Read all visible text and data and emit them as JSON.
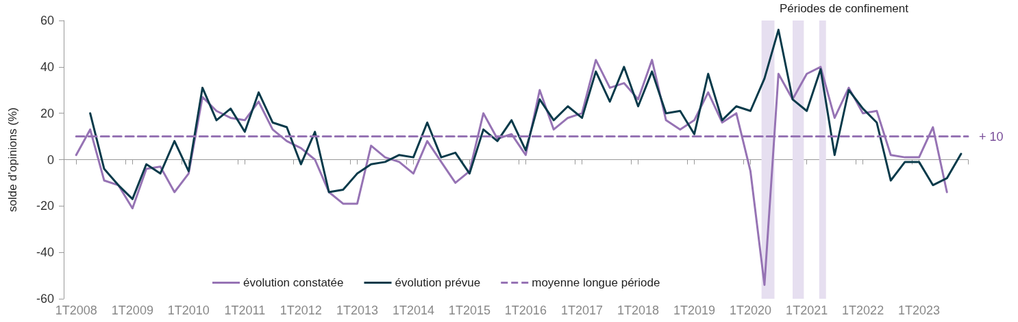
{
  "chart_data": {
    "type": "line",
    "ylabel": "solde d’opinions (%)",
    "x": [
      "2008-01",
      "2008-04",
      "2008-07",
      "2008-10",
      "2009-01",
      "2009-04",
      "2009-07",
      "2009-10",
      "2010-01",
      "2010-04",
      "2010-07",
      "2010-10",
      "2011-01",
      "2011-04",
      "2011-07",
      "2011-10",
      "2012-01",
      "2012-04",
      "2012-07",
      "2012-10",
      "2013-01",
      "2013-04",
      "2013-07",
      "2013-10",
      "2014-01",
      "2014-04",
      "2014-07",
      "2014-10",
      "2015-01",
      "2015-04",
      "2015-07",
      "2015-10",
      "2016-01",
      "2016-04",
      "2016-07",
      "2016-10",
      "2017-01",
      "2017-04",
      "2017-07",
      "2017-10",
      "2018-01",
      "2018-04",
      "2018-07",
      "2018-10",
      "2019-01",
      "2019-04",
      "2019-07",
      "2019-10",
      "2020-01",
      "2020-04",
      "2020-07",
      "2020-10",
      "2021-01",
      "2021-04",
      "2021-07",
      "2021-10",
      "2022-01",
      "2022-04",
      "2022-07",
      "2022-10",
      "2023-01",
      "2023-04",
      "2023-07",
      "2023-10"
    ],
    "series": [
      {
        "name": "évolution constatée",
        "color": "#9673b4",
        "values": [
          2,
          13,
          -9,
          -11,
          -21,
          -4,
          -3,
          -14,
          -6,
          27,
          21,
          18,
          17,
          25,
          13,
          8,
          5,
          0,
          -14,
          -19,
          -19,
          6,
          1,
          -1,
          -6,
          8,
          -1,
          -10,
          -5,
          20,
          9,
          11,
          2,
          30,
          13,
          18,
          20,
          43,
          31,
          33,
          26,
          43,
          17,
          13,
          17,
          29,
          16,
          20,
          -5,
          -54,
          37,
          26,
          37,
          40,
          18,
          31,
          20,
          21,
          2,
          1,
          1,
          14,
          -14,
          null
        ]
      },
      {
        "name": "évolution prévue",
        "color": "#083a4a",
        "values": [
          null,
          20,
          -4,
          -11,
          -17,
          -2,
          -6,
          8,
          -5,
          31,
          17,
          22,
          12,
          29,
          16,
          14,
          -2,
          12,
          -14,
          -13,
          -6,
          -2,
          -1,
          2,
          1,
          16,
          1,
          3,
          -6,
          13,
          8,
          17,
          4,
          26,
          17,
          23,
          18,
          38,
          25,
          40,
          23,
          38,
          20,
          21,
          11,
          37,
          17,
          23,
          21,
          35,
          56,
          26,
          21,
          39,
          2,
          30,
          22,
          16,
          -9,
          -1,
          -1,
          -11,
          -8,
          2.5
        ]
      },
      {
        "name": "moyenne longue période",
        "color": "#9673b4",
        "line_style": "dashed",
        "x": [
          "2008-01",
          "2023-11-15"
        ],
        "values": [
          10,
          10
        ]
      }
    ],
    "bands": [
      {
        "axis": "x",
        "from": "2020-03-13",
        "to": "2020-06-05",
        "color": "#e6dff0"
      },
      {
        "axis": "x",
        "from": "2020-10-01",
        "to": "2020-12-13",
        "color": "#e6dff0"
      },
      {
        "axis": "x",
        "from": "2021-03-23",
        "to": "2021-05-06",
        "color": "#e6dff0"
      }
    ],
    "annotations": [
      "Périodes de confinement",
      {
        "text": "+ 10",
        "x": "2023-11-15",
        "y": 10
      }
    ],
    "xlim": [
      "2007-10-12",
      "2023-11-15"
    ],
    "xticks": [
      {
        "value": "2008-01",
        "label": "1T2008"
      },
      {
        "value": "2009-01",
        "label": "1T2009"
      },
      {
        "value": "2010-01",
        "label": "1T2010"
      },
      {
        "value": "2011-01",
        "label": "1T2011"
      },
      {
        "value": "2012-01",
        "label": "1T2012"
      },
      {
        "value": "2013-01",
        "label": "1T2013"
      },
      {
        "value": "2014-01",
        "label": "1T2014"
      },
      {
        "value": "2015-01",
        "label": "1T2015"
      },
      {
        "value": "2016-01",
        "label": "1T2016"
      },
      {
        "value": "2017-01",
        "label": "1T2017"
      },
      {
        "value": "2018-01",
        "label": "1T2018"
      },
      {
        "value": "2019-01",
        "label": "1T2019"
      },
      {
        "value": "2020-01",
        "label": "1T2020"
      },
      {
        "value": "2021-01",
        "label": "1T2021"
      },
      {
        "value": "2022-01",
        "label": "1T2022"
      },
      {
        "value": "2023-01",
        "label": "1T2023"
      },
      {
        "value": "2008-11-15",
        "label": null
      },
      {
        "value": "2009-11-15",
        "label": null
      },
      {
        "value": "2010-11-15",
        "label": null
      },
      {
        "value": "2011-11-15",
        "label": null
      },
      {
        "value": "2012-11-15",
        "label": null
      },
      {
        "value": "2013-11-15",
        "label": null
      },
      {
        "value": "2014-11-15",
        "label": null
      },
      {
        "value": "2015-11-15",
        "label": null
      },
      {
        "value": "2016-11-15",
        "label": null
      },
      {
        "value": "2017-11-15",
        "label": null
      },
      {
        "value": "2018-11-15",
        "label": null
      },
      {
        "value": "2019-11-15",
        "label": null
      },
      {
        "value": "2020-11-15",
        "label": null
      },
      {
        "value": "2021-11-15",
        "label": null
      },
      {
        "value": "2022-11-15",
        "label": null
      },
      {
        "value": "2023-11-15",
        "label": null
      }
    ],
    "ylim": [
      -60,
      60
    ],
    "yticks": [
      -60,
      -40,
      -20,
      0,
      20,
      40,
      60
    ],
    "legend": "bottom",
    "marker": "none",
    "line_style": "solid"
  }
}
